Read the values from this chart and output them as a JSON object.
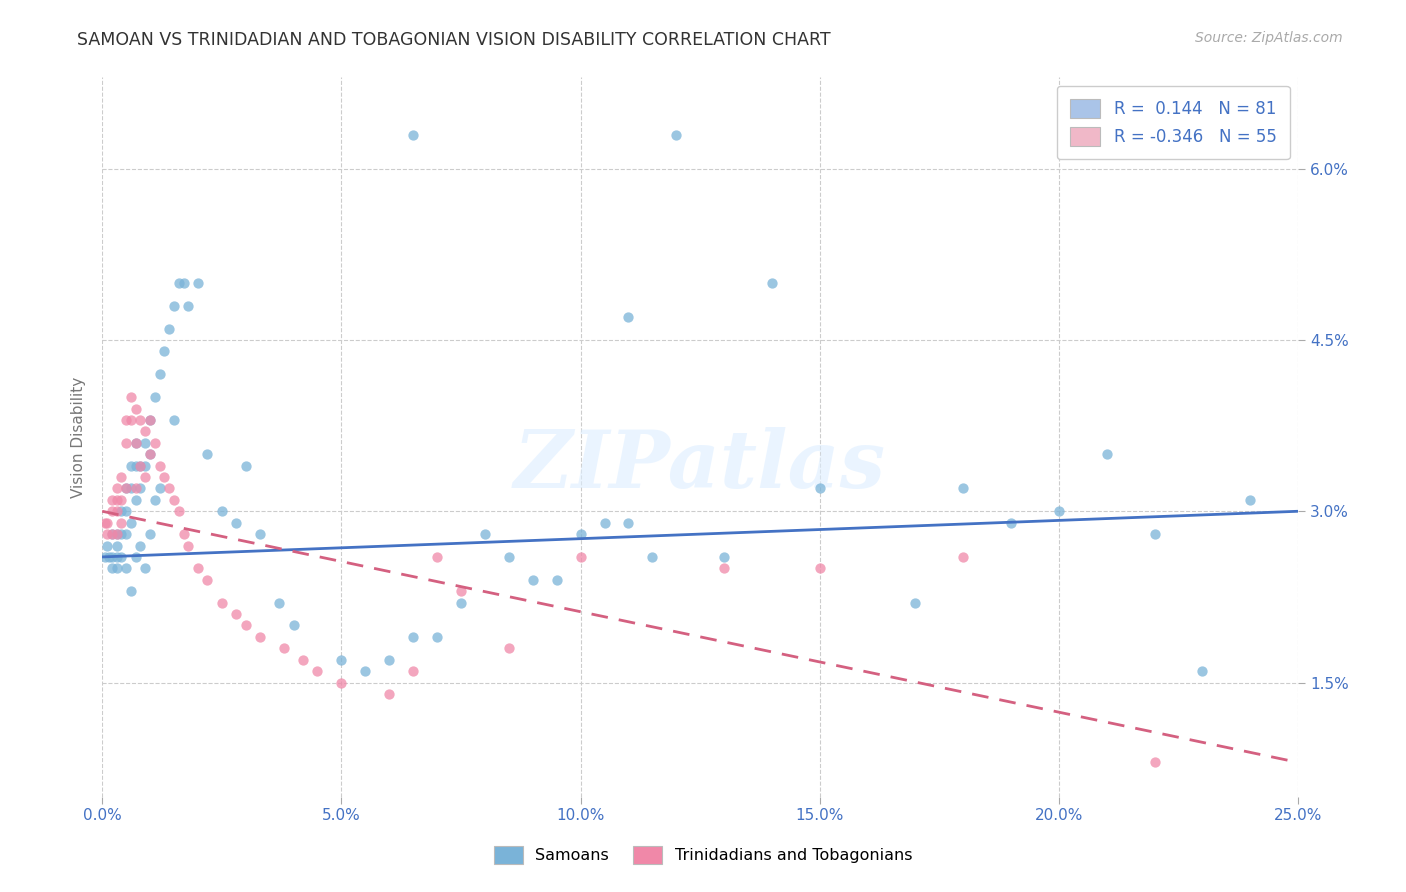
{
  "title": "SAMOAN VS TRINIDADIAN AND TOBAGONIAN VISION DISABILITY CORRELATION CHART",
  "source": "Source: ZipAtlas.com",
  "ylabel": "Vision Disability",
  "yticks_labels": [
    "1.5%",
    "3.0%",
    "4.5%",
    "6.0%"
  ],
  "yticks_vals": [
    0.015,
    0.03,
    0.045,
    0.06
  ],
  "xticks_labels": [
    "0.0%",
    "5.0%",
    "10.0%",
    "15.0%",
    "20.0%",
    "25.0%"
  ],
  "xticks_vals": [
    0.0,
    0.05,
    0.1,
    0.15,
    0.2,
    0.25
  ],
  "xmin": 0.0,
  "xmax": 0.25,
  "ymin": 0.005,
  "ymax": 0.068,
  "legend_entries": [
    {
      "label_r": "R =",
      "label_v": " 0.144",
      "label_n": "N =",
      "label_nv": "81",
      "color": "#aac4e8"
    },
    {
      "label_r": "R =",
      "label_v": "-0.346",
      "label_n": "N =",
      "label_nv": "55",
      "color": "#f0b8c8"
    }
  ],
  "watermark": "ZIPatlas",
  "blue_color": "#7ab3d8",
  "pink_color": "#f088a8",
  "line_blue_color": "#4472c4",
  "line_pink_color": "#d46080",
  "background_color": "#ffffff",
  "grid_color": "#cccccc",
  "text_color": "#4472c4",
  "title_color": "#333333",
  "blue_line_start_y": 0.026,
  "blue_line_end_y": 0.03,
  "pink_line_start_y": 0.03,
  "pink_line_end_y": 0.008,
  "samoans_x": [
    0.0005,
    0.001,
    0.0015,
    0.002,
    0.002,
    0.002,
    0.003,
    0.003,
    0.003,
    0.003,
    0.004,
    0.004,
    0.004,
    0.005,
    0.005,
    0.005,
    0.005,
    0.006,
    0.006,
    0.006,
    0.006,
    0.007,
    0.007,
    0.007,
    0.007,
    0.008,
    0.008,
    0.008,
    0.009,
    0.009,
    0.009,
    0.01,
    0.01,
    0.01,
    0.011,
    0.011,
    0.012,
    0.012,
    0.013,
    0.014,
    0.015,
    0.015,
    0.016,
    0.017,
    0.018,
    0.02,
    0.022,
    0.025,
    0.028,
    0.03,
    0.033,
    0.037,
    0.04,
    0.05,
    0.055,
    0.06,
    0.065,
    0.07,
    0.08,
    0.09,
    0.1,
    0.11,
    0.12,
    0.13,
    0.14,
    0.15,
    0.17,
    0.19,
    0.2,
    0.21,
    0.22,
    0.23,
    0.24,
    0.11,
    0.18,
    0.065,
    0.075,
    0.085,
    0.095,
    0.105,
    0.115
  ],
  "samoans_y": [
    0.026,
    0.027,
    0.026,
    0.028,
    0.026,
    0.025,
    0.028,
    0.027,
    0.026,
    0.025,
    0.03,
    0.028,
    0.026,
    0.032,
    0.03,
    0.028,
    0.025,
    0.034,
    0.032,
    0.029,
    0.023,
    0.036,
    0.034,
    0.031,
    0.026,
    0.034,
    0.032,
    0.027,
    0.036,
    0.034,
    0.025,
    0.038,
    0.035,
    0.028,
    0.04,
    0.031,
    0.042,
    0.032,
    0.044,
    0.046,
    0.048,
    0.038,
    0.05,
    0.05,
    0.048,
    0.05,
    0.035,
    0.03,
    0.029,
    0.034,
    0.028,
    0.022,
    0.02,
    0.017,
    0.016,
    0.017,
    0.063,
    0.019,
    0.028,
    0.024,
    0.028,
    0.029,
    0.063,
    0.026,
    0.05,
    0.032,
    0.022,
    0.029,
    0.03,
    0.035,
    0.028,
    0.016,
    0.031,
    0.047,
    0.032,
    0.019,
    0.022,
    0.026,
    0.024,
    0.029,
    0.026
  ],
  "trinis_x": [
    0.0005,
    0.001,
    0.001,
    0.002,
    0.002,
    0.002,
    0.003,
    0.003,
    0.003,
    0.003,
    0.004,
    0.004,
    0.004,
    0.005,
    0.005,
    0.005,
    0.006,
    0.006,
    0.007,
    0.007,
    0.007,
    0.008,
    0.008,
    0.009,
    0.009,
    0.01,
    0.01,
    0.011,
    0.012,
    0.013,
    0.014,
    0.015,
    0.016,
    0.017,
    0.018,
    0.02,
    0.022,
    0.025,
    0.028,
    0.03,
    0.033,
    0.038,
    0.042,
    0.045,
    0.05,
    0.06,
    0.065,
    0.07,
    0.1,
    0.13,
    0.15,
    0.18,
    0.22,
    0.075,
    0.085
  ],
  "trinis_y": [
    0.029,
    0.029,
    0.028,
    0.031,
    0.03,
    0.028,
    0.032,
    0.031,
    0.03,
    0.028,
    0.033,
    0.031,
    0.029,
    0.038,
    0.036,
    0.032,
    0.04,
    0.038,
    0.039,
    0.036,
    0.032,
    0.038,
    0.034,
    0.037,
    0.033,
    0.038,
    0.035,
    0.036,
    0.034,
    0.033,
    0.032,
    0.031,
    0.03,
    0.028,
    0.027,
    0.025,
    0.024,
    0.022,
    0.021,
    0.02,
    0.019,
    0.018,
    0.017,
    0.016,
    0.015,
    0.014,
    0.016,
    0.026,
    0.026,
    0.025,
    0.025,
    0.026,
    0.008,
    0.023,
    0.018
  ]
}
